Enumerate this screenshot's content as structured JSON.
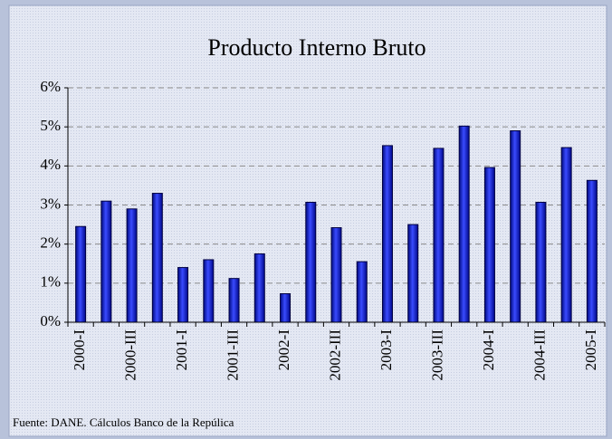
{
  "chart_data": {
    "type": "bar",
    "title": "Producto Interno Bruto",
    "categories": [
      "2000-I",
      null,
      "2000-III",
      null,
      "2001-I",
      null,
      "2001-III",
      null,
      "2002-I",
      null,
      "2002-III",
      null,
      "2003-I",
      null,
      "2003-III",
      null,
      "2004-I",
      null,
      "2004-III",
      null,
      "2005-I"
    ],
    "values": [
      2.45,
      3.1,
      2.9,
      3.3,
      1.4,
      1.6,
      1.12,
      1.75,
      0.73,
      3.07,
      2.42,
      1.55,
      4.52,
      2.5,
      4.45,
      5.02,
      3.96,
      4.9,
      3.07,
      4.47,
      3.63
    ],
    "color": "#1f2bff",
    "ylim": [
      0,
      6
    ],
    "yticks": [
      {
        "value": 0,
        "label": "0%"
      },
      {
        "value": 1,
        "label": "1%"
      },
      {
        "value": 2,
        "label": "2%"
      },
      {
        "value": 3,
        "label": "3%"
      },
      {
        "value": 4,
        "label": "4%"
      },
      {
        "value": 5,
        "label": "5%"
      },
      {
        "value": 6,
        "label": "6%"
      }
    ],
    "grid": true,
    "source": "Fuente: DANE. Cálculos Banco de la Repúlica"
  }
}
